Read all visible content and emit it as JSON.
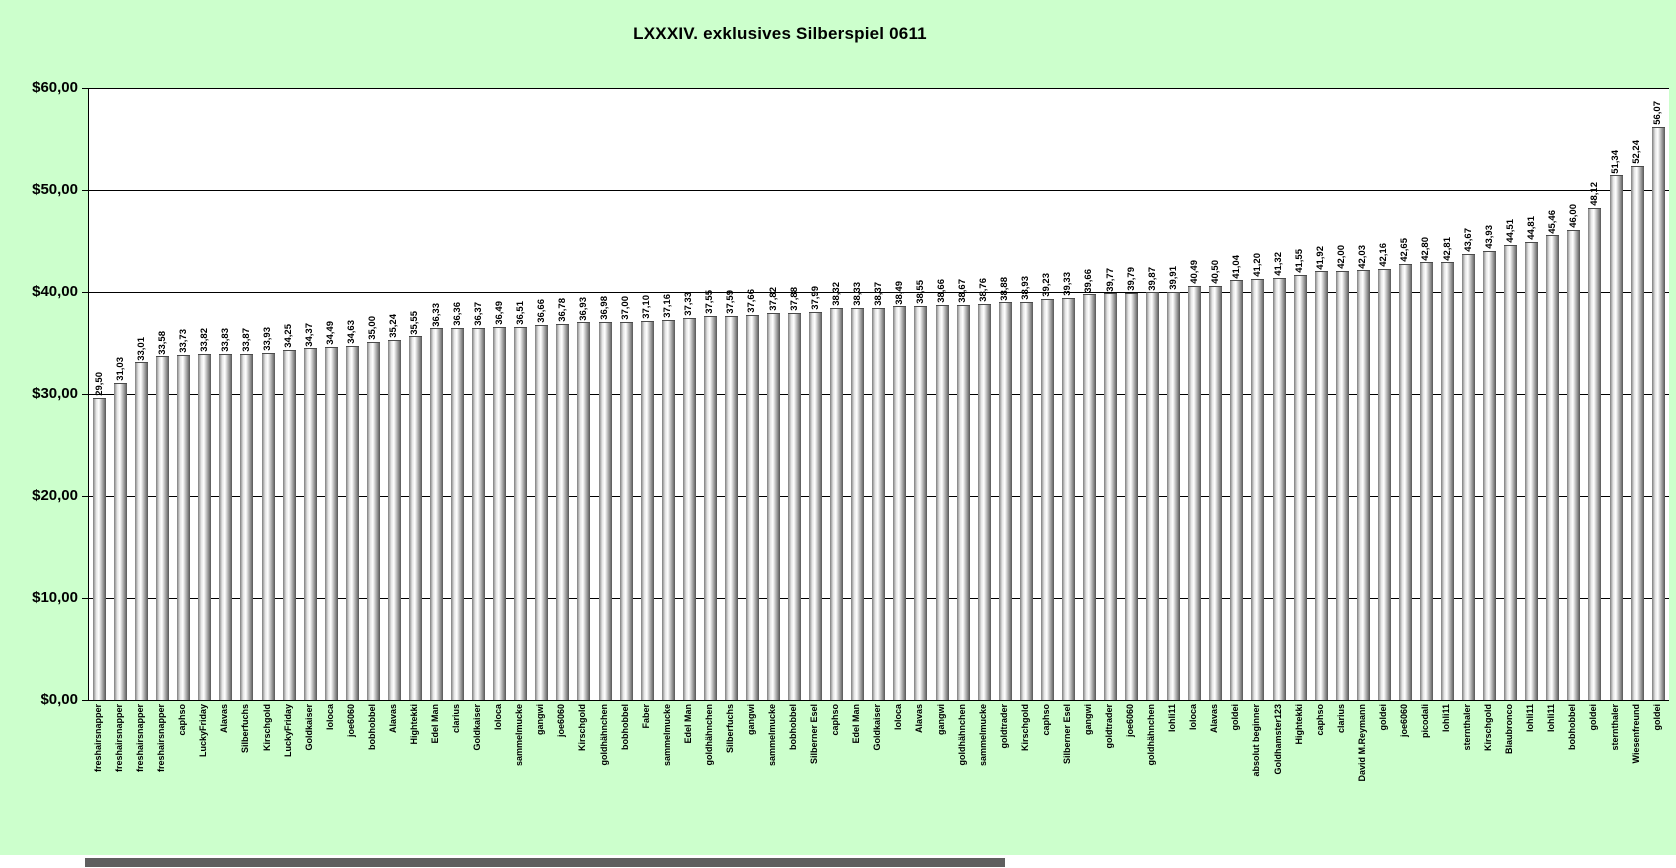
{
  "title": "LXXXIV. exklusives Silberspiel 0611",
  "chart_data": {
    "type": "bar",
    "title": "LXXXIV. exklusives Silberspiel 0611",
    "xlabel": "",
    "ylabel": "",
    "ylim": [
      0,
      60
    ],
    "grid": true,
    "legend": false,
    "ytick_labels": [
      "$60,00",
      "$50,00",
      "$40,00",
      "$30,00",
      "$20,00",
      "$10,00",
      "$0,00"
    ],
    "categories": [
      "freshairsnapper",
      "freshairsnapper",
      "freshairsnapper",
      "freshairsnapper",
      "caphso",
      "LuckyFriday",
      "Alavas",
      "Silberfuchs",
      "Kirschgold",
      "LuckyFriday",
      "Goldkaiser",
      "loloca",
      "joe6060",
      "bobhobbel",
      "Alavas",
      "Hightekki",
      "Edel Man",
      "clarius",
      "Goldkaiser",
      "loloca",
      "sammelmucke",
      "gangwi",
      "joe6060",
      "Kirschgold",
      "goldhähnchen",
      "bobhobbel",
      "Faber",
      "sammelmucke",
      "Edel Man",
      "goldhähnchen",
      "Silberfuchs",
      "gangwi",
      "sammelmucke",
      "bobhobbel",
      "Silberner Esel",
      "caphso",
      "Edel Man",
      "Goldkaiser",
      "loloca",
      "Alavas",
      "gangwi",
      "goldhähnchen",
      "sammelmucke",
      "goldtrader",
      "Kirschgold",
      "caphso",
      "Silberner Esel",
      "gangwi",
      "goldtrader",
      "joe6060",
      "goldhähnchen",
      "lohli11",
      "loloca",
      "Alavas",
      "goldei",
      "absolut beginner",
      "Goldhamster123",
      "Hightekki",
      "caphso",
      "clarius",
      "David M.Reymann",
      "goldei",
      "joe6060",
      "picodali",
      "lohli11",
      "sternthaler",
      "Kirschgold",
      "Blaubronco",
      "lohli11",
      "lohli11",
      "bobhobbel",
      "goldei",
      "sternthaler",
      "Wiesenfreund",
      "goldei"
    ],
    "values": [
      29.5,
      31.03,
      33.01,
      33.58,
      33.73,
      33.82,
      33.83,
      33.87,
      33.93,
      34.25,
      34.37,
      34.49,
      34.63,
      35.0,
      35.24,
      35.55,
      36.33,
      36.36,
      36.37,
      36.49,
      36.51,
      36.66,
      36.78,
      36.93,
      36.98,
      37.0,
      37.1,
      37.16,
      37.33,
      37.55,
      37.59,
      37.66,
      37.82,
      37.88,
      37.99,
      38.32,
      38.33,
      38.37,
      38.49,
      38.55,
      38.66,
      38.67,
      38.76,
      38.88,
      38.93,
      39.23,
      39.33,
      39.66,
      39.77,
      39.79,
      39.87,
      39.91,
      40.49,
      40.5,
      41.04,
      41.2,
      41.32,
      41.55,
      41.92,
      42.0,
      42.03,
      42.16,
      42.65,
      42.8,
      42.81,
      43.67,
      43.93,
      44.51,
      44.81,
      45.46,
      46.0,
      48.12,
      51.34,
      52.24,
      56.07
    ],
    "value_labels": [
      "29,50",
      "31,03",
      "33,01",
      "33,58",
      "33,73",
      "33,82",
      "33,83",
      "33,87",
      "33,93",
      "34,25",
      "34,37",
      "34,49",
      "34,63",
      "35,00",
      "35,24",
      "35,55",
      "36,33",
      "36,36",
      "36,37",
      "36,49",
      "36,51",
      "36,66",
      "36,78",
      "36,93",
      "36,98",
      "37,00",
      "37,10",
      "37,16",
      "37,33",
      "37,55",
      "37,59",
      "37,66",
      "37,82",
      "37,88",
      "37,99",
      "38,32",
      "38,33",
      "38,37",
      "38,49",
      "38,55",
      "38,66",
      "38,67",
      "38,76",
      "38,88",
      "38,93",
      "39,23",
      "39,33",
      "39,66",
      "39,77",
      "39,79",
      "39,87",
      "39,91",
      "40,49",
      "40,50",
      "41,04",
      "41,20",
      "41,32",
      "41,55",
      "41,92",
      "42,00",
      "42,03",
      "42,16",
      "42,65",
      "42,80",
      "42,81",
      "43,67",
      "43,93",
      "44,51",
      "44,81",
      "45,46",
      "46,00",
      "48,12",
      "51,34",
      "52,24",
      "56,07"
    ]
  },
  "colors": {
    "background": "#ccffcc",
    "plot_background": "#ffffff",
    "gridline": "#000000",
    "bar_edge_dark": "#565656",
    "bar_highlight": "#ffffff",
    "scrollbar_thumb": "#5f5f5f"
  }
}
